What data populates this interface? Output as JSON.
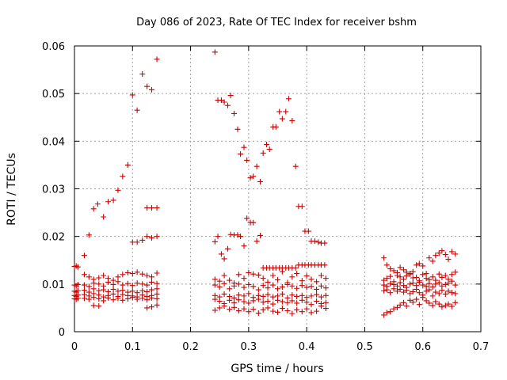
{
  "chart_data": {
    "type": "scatter",
    "title": "Day 086 of 2023, Rate Of TEC Index for receiver bshm",
    "xlabel": "GPS time / hours",
    "ylabel": "ROTI / TECUs",
    "xlim": [
      0,
      0.7
    ],
    "ylim": [
      0,
      0.06
    ],
    "x_ticks": [
      "0",
      "0.1",
      "0.2",
      "0.3",
      "0.4",
      "0.5",
      "0.6",
      "0.7"
    ],
    "y_ticks": [
      "0",
      "0.01",
      "0.02",
      "0.03",
      "0.04",
      "0.05",
      "0.06"
    ],
    "grid": true,
    "marker": "+",
    "color": "#cc0000",
    "series": [
      {
        "x": [
          0.0,
          0.003,
          0.006,
          0.0,
          0.003,
          0.006,
          0.0,
          0.003,
          0.006,
          0.0,
          0.003,
          0.006,
          0.0,
          0.003,
          0.006,
          0.017,
          0.025,
          0.033,
          0.04,
          0.05,
          0.058,
          0.067,
          0.075,
          0.083,
          0.092,
          0.1,
          0.108,
          0.117,
          0.125,
          0.133,
          0.142,
          0.125,
          0.133,
          0.142,
          0.1,
          0.108,
          0.117,
          0.125,
          0.133,
          0.142,
          0.017,
          0.025,
          0.033,
          0.042,
          0.05,
          0.058,
          0.067,
          0.075,
          0.083,
          0.092,
          0.1,
          0.108,
          0.117,
          0.125,
          0.133,
          0.142,
          0.017,
          0.025,
          0.033,
          0.042,
          0.05,
          0.058,
          0.067,
          0.075,
          0.083,
          0.092,
          0.1,
          0.108,
          0.117,
          0.125,
          0.133,
          0.142,
          0.017,
          0.025,
          0.033,
          0.042,
          0.05,
          0.058,
          0.067,
          0.075,
          0.083,
          0.092,
          0.1,
          0.108,
          0.117,
          0.125,
          0.133,
          0.142,
          0.017,
          0.025,
          0.033,
          0.042,
          0.05,
          0.058,
          0.067,
          0.075,
          0.083,
          0.092,
          0.1,
          0.108,
          0.117,
          0.125,
          0.133,
          0.142,
          0.017,
          0.025,
          0.033,
          0.042,
          0.05,
          0.058,
          0.067,
          0.075,
          0.083,
          0.092,
          0.1,
          0.108,
          0.117,
          0.125,
          0.133,
          0.142,
          0.033,
          0.042,
          0.125,
          0.133,
          0.142,
          0.242,
          0.247,
          0.253,
          0.258,
          0.264,
          0.269,
          0.275,
          0.281,
          0.286,
          0.292,
          0.297,
          0.303,
          0.308,
          0.314,
          0.32,
          0.325,
          0.331,
          0.336,
          0.342,
          0.347,
          0.353,
          0.358,
          0.364,
          0.369,
          0.375,
          0.381,
          0.386,
          0.392,
          0.397,
          0.403,
          0.408,
          0.414,
          0.42,
          0.425,
          0.431,
          0.242,
          0.247,
          0.253,
          0.258,
          0.264,
          0.269,
          0.275,
          0.281,
          0.286,
          0.292,
          0.297,
          0.303,
          0.308,
          0.314,
          0.32,
          0.325,
          0.331,
          0.336,
          0.342,
          0.347,
          0.353,
          0.358,
          0.364,
          0.369,
          0.375,
          0.381,
          0.386,
          0.392,
          0.397,
          0.403,
          0.408,
          0.414,
          0.42,
          0.425,
          0.431,
          0.242,
          0.25,
          0.258,
          0.267,
          0.275,
          0.283,
          0.292,
          0.3,
          0.308,
          0.317,
          0.325,
          0.333,
          0.342,
          0.35,
          0.358,
          0.367,
          0.375,
          0.383,
          0.392,
          0.4,
          0.408,
          0.417,
          0.425,
          0.433,
          0.242,
          0.25,
          0.258,
          0.267,
          0.275,
          0.283,
          0.292,
          0.3,
          0.308,
          0.317,
          0.325,
          0.333,
          0.342,
          0.35,
          0.358,
          0.367,
          0.375,
          0.383,
          0.392,
          0.4,
          0.408,
          0.417,
          0.425,
          0.433,
          0.242,
          0.25,
          0.258,
          0.267,
          0.275,
          0.283,
          0.292,
          0.3,
          0.308,
          0.317,
          0.325,
          0.333,
          0.342,
          0.35,
          0.358,
          0.367,
          0.375,
          0.383,
          0.392,
          0.4,
          0.408,
          0.417,
          0.425,
          0.433,
          0.242,
          0.25,
          0.258,
          0.267,
          0.275,
          0.283,
          0.292,
          0.3,
          0.308,
          0.317,
          0.325,
          0.333,
          0.342,
          0.35,
          0.358,
          0.367,
          0.375,
          0.383,
          0.392,
          0.4,
          0.408,
          0.417,
          0.425,
          0.433,
          0.242,
          0.25,
          0.258,
          0.267,
          0.275,
          0.283,
          0.292,
          0.3,
          0.308,
          0.317,
          0.325,
          0.333,
          0.342,
          0.35,
          0.358,
          0.367,
          0.375,
          0.383,
          0.392,
          0.4,
          0.408,
          0.417,
          0.425,
          0.433,
          0.533,
          0.538,
          0.544,
          0.55,
          0.556,
          0.561,
          0.567,
          0.572,
          0.578,
          0.583,
          0.589,
          0.594,
          0.6,
          0.606,
          0.611,
          0.617,
          0.622,
          0.628,
          0.633,
          0.639,
          0.644,
          0.65,
          0.656,
          0.533,
          0.538,
          0.544,
          0.55,
          0.556,
          0.561,
          0.567,
          0.572,
          0.578,
          0.583,
          0.589,
          0.594,
          0.6,
          0.606,
          0.611,
          0.617,
          0.622,
          0.628,
          0.633,
          0.639,
          0.644,
          0.65,
          0.656,
          0.533,
          0.538,
          0.544,
          0.55,
          0.556,
          0.561,
          0.567,
          0.572,
          0.578,
          0.583,
          0.589,
          0.594,
          0.6,
          0.606,
          0.611,
          0.617,
          0.622,
          0.628,
          0.633,
          0.639,
          0.644,
          0.65,
          0.656,
          0.533,
          0.538,
          0.544,
          0.55,
          0.556,
          0.561,
          0.567,
          0.572,
          0.578,
          0.583,
          0.589,
          0.594,
          0.6,
          0.606,
          0.611,
          0.617,
          0.622,
          0.628,
          0.633,
          0.639,
          0.644,
          0.65,
          0.656,
          0.533,
          0.538,
          0.544,
          0.55,
          0.556,
          0.561,
          0.567,
          0.572,
          0.578,
          0.583,
          0.589,
          0.594,
          0.6,
          0.606,
          0.611,
          0.617,
          0.622,
          0.628,
          0.633,
          0.639,
          0.644,
          0.65,
          0.656
        ],
        "y": [
          0.0137,
          0.0138,
          0.0136,
          0.0098,
          0.0096,
          0.0099,
          0.0085,
          0.0083,
          0.0086,
          0.0076,
          0.0074,
          0.0077,
          0.0069,
          0.0068,
          0.007,
          0.016,
          0.0203,
          0.0258,
          0.0268,
          0.0241,
          0.0273,
          0.0276,
          0.0297,
          0.0326,
          0.035,
          0.0497,
          0.0465,
          0.0541,
          0.0515,
          0.0508,
          0.0572,
          0.026,
          0.026,
          0.026,
          0.0188,
          0.0188,
          0.0192,
          0.02,
          0.0197,
          0.02,
          0.012,
          0.0115,
          0.011,
          0.0113,
          0.0118,
          0.0112,
          0.0108,
          0.0115,
          0.012,
          0.0124,
          0.0122,
          0.0125,
          0.0121,
          0.0118,
          0.0115,
          0.0123,
          0.0098,
          0.0095,
          0.0102,
          0.01,
          0.0096,
          0.0104,
          0.0099,
          0.0105,
          0.0098,
          0.0101,
          0.0097,
          0.0102,
          0.01,
          0.0098,
          0.0104,
          0.0101,
          0.0087,
          0.0083,
          0.009,
          0.0086,
          0.0088,
          0.0084,
          0.0089,
          0.0085,
          0.0087,
          0.0083,
          0.0085,
          0.0082,
          0.0086,
          0.0084,
          0.0088,
          0.009,
          0.0078,
          0.0075,
          0.008,
          0.0077,
          0.0073,
          0.0076,
          0.0079,
          0.0074,
          0.0078,
          0.0076,
          0.0075,
          0.0073,
          0.0077,
          0.0074,
          0.0076,
          0.0079,
          0.007,
          0.0068,
          0.0072,
          0.0069,
          0.0065,
          0.0071,
          0.0067,
          0.007,
          0.0066,
          0.0069,
          0.0072,
          0.0068,
          0.007,
          0.0067,
          0.0071,
          0.0069,
          0.0055,
          0.0054,
          0.005,
          0.0052,
          0.0056,
          0.0587,
          0.0486,
          0.0486,
          0.0482,
          0.0475,
          0.0496,
          0.0458,
          0.0425,
          0.0373,
          0.0387,
          0.036,
          0.0323,
          0.0326,
          0.0347,
          0.0315,
          0.0375,
          0.0393,
          0.0383,
          0.043,
          0.043,
          0.0462,
          0.0447,
          0.0462,
          0.0489,
          0.0443,
          0.0347,
          0.0263,
          0.0263,
          0.0211,
          0.0211,
          0.019,
          0.019,
          0.0188,
          0.0186,
          0.0186,
          0.0189,
          0.02,
          0.0163,
          0.0153,
          0.0174,
          0.0204,
          0.0203,
          0.0203,
          0.02,
          0.018,
          0.0238,
          0.0229,
          0.0229,
          0.019,
          0.0202,
          0.0134,
          0.0134,
          0.0134,
          0.0134,
          0.0134,
          0.0134,
          0.0134,
          0.0134,
          0.0134,
          0.0134,
          0.0134,
          0.014,
          0.014,
          0.014,
          0.014,
          0.014,
          0.014,
          0.014,
          0.014,
          0.014,
          0.011,
          0.0106,
          0.0118,
          0.0108,
          0.0102,
          0.012,
          0.0112,
          0.0124,
          0.0121,
          0.0119,
          0.0112,
          0.0104,
          0.0118,
          0.0109,
          0.0126,
          0.0103,
          0.0115,
          0.0122,
          0.0107,
          0.0117,
          0.011,
          0.0105,
          0.0118,
          0.0112,
          0.0098,
          0.0094,
          0.0101,
          0.009,
          0.0096,
          0.01,
          0.0093,
          0.0099,
          0.0095,
          0.0088,
          0.0097,
          0.0092,
          0.0098,
          0.009,
          0.0094,
          0.0099,
          0.0096,
          0.0091,
          0.0097,
          0.0093,
          0.0095,
          0.0089,
          0.0096,
          0.0092,
          0.0076,
          0.0073,
          0.0079,
          0.0074,
          0.0071,
          0.0077,
          0.0075,
          0.008,
          0.0072,
          0.0076,
          0.0074,
          0.0078,
          0.0073,
          0.0075,
          0.0079,
          0.0071,
          0.0077,
          0.0074,
          0.0076,
          0.0072,
          0.0075,
          0.0078,
          0.0073,
          0.0076,
          0.0068,
          0.0064,
          0.0059,
          0.0066,
          0.0061,
          0.0067,
          0.0063,
          0.006,
          0.0065,
          0.0068,
          0.0062,
          0.0064,
          0.0058,
          0.0066,
          0.0063,
          0.0061,
          0.0065,
          0.006,
          0.0066,
          0.0062,
          0.0057,
          0.0064,
          0.0059,
          0.0061,
          0.0045,
          0.005,
          0.0054,
          0.0047,
          0.0051,
          0.0044,
          0.0048,
          0.0042,
          0.0047,
          0.0039,
          0.0046,
          0.005,
          0.0043,
          0.0041,
          0.0049,
          0.0044,
          0.0038,
          0.0046,
          0.0042,
          0.0048,
          0.004,
          0.0043,
          0.0054,
          0.0049,
          0.0155,
          0.014,
          0.0132,
          0.0128,
          0.0124,
          0.0135,
          0.013,
          0.0125,
          0.0122,
          0.0126,
          0.014,
          0.0143,
          0.0138,
          0.0122,
          0.0155,
          0.0148,
          0.016,
          0.0165,
          0.017,
          0.0162,
          0.0152,
          0.0168,
          0.0163,
          0.0108,
          0.0112,
          0.0116,
          0.0105,
          0.0118,
          0.0115,
          0.011,
          0.0117,
          0.0121,
          0.0113,
          0.0114,
          0.0107,
          0.012,
          0.0112,
          0.0109,
          0.0115,
          0.0108,
          0.0121,
          0.0114,
          0.0118,
          0.011,
          0.012,
          0.0125,
          0.0098,
          0.0095,
          0.0101,
          0.0099,
          0.0096,
          0.0103,
          0.0097,
          0.0093,
          0.01,
          0.0102,
          0.0097,
          0.0104,
          0.0098,
          0.0095,
          0.0101,
          0.0094,
          0.01,
          0.0103,
          0.0096,
          0.0099,
          0.0102,
          0.0106,
          0.0098,
          0.0086,
          0.0088,
          0.0082,
          0.009,
          0.0085,
          0.0089,
          0.0083,
          0.0087,
          0.008,
          0.0084,
          0.0089,
          0.0082,
          0.0077,
          0.0085,
          0.0088,
          0.0075,
          0.0083,
          0.008,
          0.0087,
          0.0079,
          0.0085,
          0.0082,
          0.008,
          0.0035,
          0.004,
          0.0042,
          0.0048,
          0.0051,
          0.0056,
          0.0061,
          0.0054,
          0.0066,
          0.0062,
          0.0068,
          0.0057,
          0.0072,
          0.0065,
          0.006,
          0.0055,
          0.0063,
          0.0058,
          0.0052,
          0.0055,
          0.0058,
          0.0053,
          0.0061
        ]
      }
    ]
  }
}
